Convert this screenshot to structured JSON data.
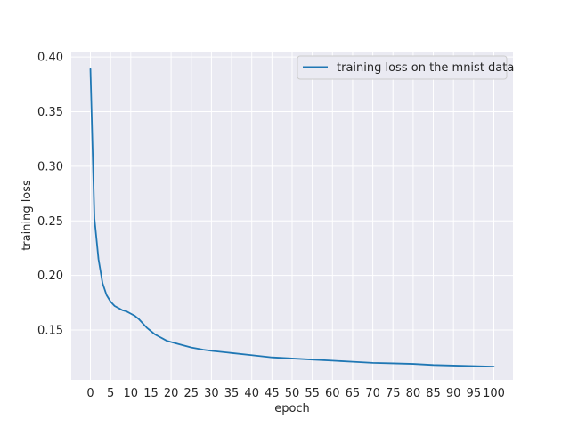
{
  "chart_data": {
    "type": "line",
    "title": "",
    "xlabel": "epoch",
    "ylabel": "training loss",
    "xlim": [
      -4.75,
      104.75
    ],
    "ylim": [
      0.1044,
      0.405
    ],
    "xticks": [
      0,
      5,
      10,
      15,
      20,
      25,
      30,
      35,
      40,
      45,
      50,
      55,
      60,
      65,
      70,
      75,
      80,
      85,
      90,
      95,
      100
    ],
    "yticks": [
      0.15,
      0.2,
      0.25,
      0.3,
      0.35,
      0.4
    ],
    "ytick_labels": [
      "0.15",
      "0.20",
      "0.25",
      "0.30",
      "0.35",
      "0.40"
    ],
    "grid": true,
    "legend_position": "top-right",
    "series": [
      {
        "name": "training loss on the mnist data",
        "color": "#1f77b4",
        "x": [
          0,
          1,
          2,
          3,
          4,
          5,
          6,
          7,
          8,
          9,
          10,
          11,
          12,
          13,
          14,
          15,
          16,
          17,
          18,
          19,
          20,
          22,
          25,
          28,
          30,
          35,
          40,
          45,
          50,
          55,
          60,
          65,
          70,
          75,
          80,
          85,
          90,
          95,
          100
        ],
        "y": [
          0.389,
          0.252,
          0.215,
          0.193,
          0.182,
          0.176,
          0.172,
          0.17,
          0.168,
          0.167,
          0.165,
          0.163,
          0.16,
          0.156,
          0.152,
          0.149,
          0.146,
          0.144,
          0.142,
          0.14,
          0.139,
          0.137,
          0.134,
          0.132,
          0.131,
          0.129,
          0.127,
          0.125,
          0.124,
          0.123,
          0.122,
          0.121,
          0.12,
          0.1195,
          0.119,
          0.118,
          0.1175,
          0.117,
          0.1165
        ]
      }
    ]
  }
}
